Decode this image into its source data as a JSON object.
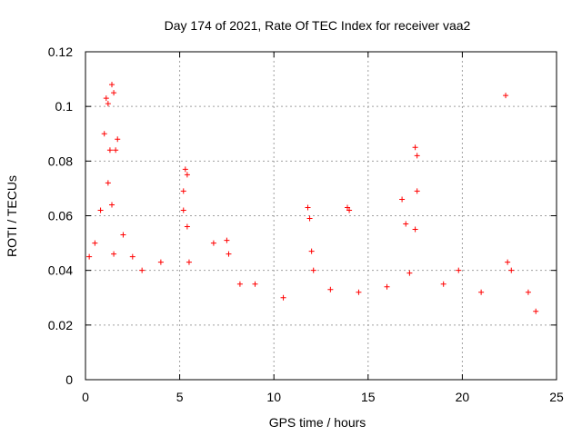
{
  "chart_data": {
    "type": "scatter",
    "title": "Day 174 of 2021, Rate Of TEC Index for receiver vaa2",
    "xlabel": "GPS time / hours",
    "ylabel": "ROTI / TECUs",
    "xlim": [
      0,
      25
    ],
    "ylim": [
      0,
      0.12
    ],
    "x_ticks": [
      "0",
      "5",
      "10",
      "15",
      "20",
      "25"
    ],
    "y_ticks": [
      "0",
      "0.02",
      "0.04",
      "0.06",
      "0.08",
      "0.1",
      "0.12"
    ],
    "x_tick_values": [
      0,
      5,
      10,
      15,
      20,
      25
    ],
    "y_tick_values": [
      0,
      0.02,
      0.04,
      0.06,
      0.08,
      0.1,
      0.12
    ],
    "grid": true,
    "marker": "+",
    "marker_color": "#ff0000",
    "series": [
      {
        "points": [
          [
            0.2,
            0.045
          ],
          [
            0.5,
            0.05
          ],
          [
            0.8,
            0.062
          ],
          [
            1.0,
            0.09
          ],
          [
            1.1,
            0.103
          ],
          [
            1.2,
            0.101
          ],
          [
            1.4,
            0.108
          ],
          [
            1.5,
            0.105
          ],
          [
            1.3,
            0.084
          ],
          [
            1.6,
            0.084
          ],
          [
            1.7,
            0.088
          ],
          [
            1.4,
            0.064
          ],
          [
            1.2,
            0.072
          ],
          [
            1.5,
            0.046
          ],
          [
            2.0,
            0.053
          ],
          [
            2.5,
            0.045
          ],
          [
            3.0,
            0.04
          ],
          [
            4.0,
            0.043
          ],
          [
            5.3,
            0.077
          ],
          [
            5.4,
            0.075
          ],
          [
            5.2,
            0.069
          ],
          [
            5.4,
            0.056
          ],
          [
            5.2,
            0.062
          ],
          [
            5.5,
            0.043
          ],
          [
            6.8,
            0.05
          ],
          [
            7.5,
            0.051
          ],
          [
            7.6,
            0.046
          ],
          [
            8.2,
            0.035
          ],
          [
            9.0,
            0.035
          ],
          [
            10.5,
            0.03
          ],
          [
            11.8,
            0.063
          ],
          [
            11.9,
            0.059
          ],
          [
            12.0,
            0.047
          ],
          [
            12.1,
            0.04
          ],
          [
            13.0,
            0.033
          ],
          [
            13.9,
            0.063
          ],
          [
            14.0,
            0.062
          ],
          [
            14.5,
            0.032
          ],
          [
            16.0,
            0.034
          ],
          [
            16.8,
            0.066
          ],
          [
            17.0,
            0.057
          ],
          [
            17.5,
            0.085
          ],
          [
            17.6,
            0.082
          ],
          [
            17.6,
            0.069
          ],
          [
            17.5,
            0.055
          ],
          [
            17.2,
            0.039
          ],
          [
            19.0,
            0.035
          ],
          [
            19.8,
            0.04
          ],
          [
            21.0,
            0.032
          ],
          [
            22.3,
            0.104
          ],
          [
            22.4,
            0.043
          ],
          [
            22.6,
            0.04
          ],
          [
            23.5,
            0.032
          ],
          [
            23.9,
            0.025
          ]
        ]
      }
    ]
  }
}
